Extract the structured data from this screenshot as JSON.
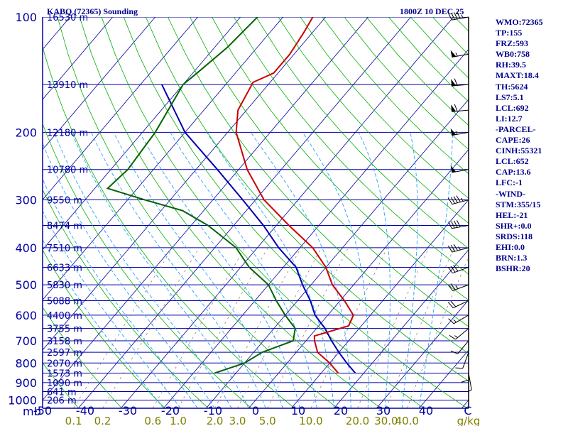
{
  "header": {
    "title_left": "KABQ (72365) Sounding",
    "title_right": "1800Z 10 DEC 25"
  },
  "indices": [
    "WMO:72365",
    "TP:155",
    "FRZ:593",
    "WB0:758",
    "RH:39.5",
    "MAXT:18.4",
    "TH:5624",
    "LS7:5.1",
    "LCL:692",
    "LI:12.7",
    "-PARCEL-",
    "CAPE:26",
    "CINH:55321",
    "LCL:652",
    "CAP:13.6",
    "LFC:-1",
    "-WIND-",
    "STM:355/15",
    "HEL:-21",
    "SHR+:0.0",
    "SRDS:118",
    "EHI:0.0",
    "BRN:1.3",
    "BSHR:20"
  ],
  "chart_data": {
    "type": "skew-t",
    "pressure_unit_label": "mb",
    "pressure_ticks": [
      100,
      200,
      300,
      400,
      500,
      600,
      700,
      800,
      900,
      1000
    ],
    "height_labels": [
      {
        "p": 100,
        "text": "16530 m"
      },
      {
        "p": 150,
        "text": "13910 m"
      },
      {
        "p": 200,
        "text": "12180 m"
      },
      {
        "p": 250,
        "text": "10780 m"
      },
      {
        "p": 300,
        "text": "9550 m"
      },
      {
        "p": 350,
        "text": "8474 m"
      },
      {
        "p": 400,
        "text": "7510 m"
      },
      {
        "p": 450,
        "text": "6633 m"
      },
      {
        "p": 500,
        "text": "5830 m"
      },
      {
        "p": 550,
        "text": "5088 m"
      },
      {
        "p": 600,
        "text": "4400 m"
      },
      {
        "p": 650,
        "text": "3755 m"
      },
      {
        "p": 700,
        "text": "3158 m"
      },
      {
        "p": 750,
        "text": "2597 m"
      },
      {
        "p": 800,
        "text": "2070 m"
      },
      {
        "p": 850,
        "text": "1573 m"
      },
      {
        "p": 900,
        "text": "1090 m"
      },
      {
        "p": 950,
        "text": "641 m"
      },
      {
        "p": 1000,
        "text": "206 m"
      }
    ],
    "temperature_ticks": [
      "-50",
      "-40",
      "-30",
      "-20",
      "-10",
      "0",
      "10",
      "20",
      "30",
      "40"
    ],
    "temperature_unit_label": "C",
    "mixing_ratio_ticks": [
      "0.1",
      "0.2",
      "0.6",
      "1.0",
      "2.0",
      "3.0",
      "5.0",
      "10.0",
      "20.0",
      "30.0",
      "40.0"
    ],
    "mixing_ratio_unit_label": "g/kg",
    "colors": {
      "isobars": "#0000a0",
      "isotherms": "#0000a0",
      "dry_adiabats": "#00b000",
      "moist_adiabats": "#2aa0ff",
      "mixing_ratio": "#888888",
      "temperature": "#cc0000",
      "dewpoint": "#006400",
      "parcel": "#0000b0",
      "wind_barbs": "#000000",
      "mixing_ratio_labels": "#808000"
    },
    "temperature": [
      {
        "p": 100,
        "t": -63
      },
      {
        "p": 110,
        "t": -62
      },
      {
        "p": 125,
        "t": -61
      },
      {
        "p": 140,
        "t": -61
      },
      {
        "p": 148,
        "t": -64
      },
      {
        "p": 175,
        "t": -62
      },
      {
        "p": 200,
        "t": -58
      },
      {
        "p": 250,
        "t": -48
      },
      {
        "p": 300,
        "t": -38
      },
      {
        "p": 350,
        "t": -27
      },
      {
        "p": 400,
        "t": -17
      },
      {
        "p": 450,
        "t": -10
      },
      {
        "p": 500,
        "t": -5
      },
      {
        "p": 550,
        "t": 1
      },
      {
        "p": 600,
        "t": 6
      },
      {
        "p": 640,
        "t": 7
      },
      {
        "p": 680,
        "t": 1
      },
      {
        "p": 700,
        "t": 2
      },
      {
        "p": 750,
        "t": 5
      },
      {
        "p": 800,
        "t": 10
      },
      {
        "p": 850,
        "t": 14
      }
    ],
    "dewpoint": [
      {
        "p": 100,
        "t": -76
      },
      {
        "p": 120,
        "t": -77
      },
      {
        "p": 140,
        "t": -79
      },
      {
        "p": 150,
        "t": -80
      },
      {
        "p": 200,
        "t": -77
      },
      {
        "p": 250,
        "t": -76
      },
      {
        "p": 280,
        "t": -77
      },
      {
        "p": 300,
        "t": -66
      },
      {
        "p": 320,
        "t": -55
      },
      {
        "p": 350,
        "t": -46
      },
      {
        "p": 400,
        "t": -35
      },
      {
        "p": 450,
        "t": -28
      },
      {
        "p": 500,
        "t": -20
      },
      {
        "p": 550,
        "t": -15
      },
      {
        "p": 600,
        "t": -10
      },
      {
        "p": 650,
        "t": -5
      },
      {
        "p": 700,
        "t": -3
      },
      {
        "p": 750,
        "t": -8
      },
      {
        "p": 800,
        "t": -10
      },
      {
        "p": 850,
        "t": -15
      }
    ],
    "parcel": [
      {
        "p": 150,
        "t": -85
      },
      {
        "p": 200,
        "t": -70
      },
      {
        "p": 250,
        "t": -55
      },
      {
        "p": 300,
        "t": -43
      },
      {
        "p": 350,
        "t": -33
      },
      {
        "p": 400,
        "t": -25
      },
      {
        "p": 450,
        "t": -17
      },
      {
        "p": 500,
        "t": -12
      },
      {
        "p": 550,
        "t": -7
      },
      {
        "p": 600,
        "t": -3
      },
      {
        "p": 650,
        "t": 2
      },
      {
        "p": 700,
        "t": 6
      },
      {
        "p": 750,
        "t": 10
      },
      {
        "p": 800,
        "t": 14
      },
      {
        "p": 850,
        "t": 18
      }
    ],
    "winds": [
      {
        "p": 100,
        "dir": 260,
        "spd": 45
      },
      {
        "p": 125,
        "dir": 260,
        "spd": 55
      },
      {
        "p": 150,
        "dir": 265,
        "spd": 60
      },
      {
        "p": 175,
        "dir": 265,
        "spd": 60
      },
      {
        "p": 200,
        "dir": 260,
        "spd": 55
      },
      {
        "p": 250,
        "dir": 260,
        "spd": 50
      },
      {
        "p": 300,
        "dir": 255,
        "spd": 45
      },
      {
        "p": 350,
        "dir": 260,
        "spd": 40
      },
      {
        "p": 400,
        "dir": 255,
        "spd": 35
      },
      {
        "p": 450,
        "dir": 250,
        "spd": 30
      },
      {
        "p": 500,
        "dir": 250,
        "spd": 25
      },
      {
        "p": 550,
        "dir": 245,
        "spd": 20
      },
      {
        "p": 600,
        "dir": 240,
        "spd": 15
      },
      {
        "p": 650,
        "dir": 230,
        "spd": 15
      },
      {
        "p": 700,
        "dir": 220,
        "spd": 10
      },
      {
        "p": 750,
        "dir": 200,
        "spd": 10
      },
      {
        "p": 800,
        "dir": 180,
        "spd": 10
      },
      {
        "p": 850,
        "dir": 170,
        "spd": 5
      }
    ]
  }
}
